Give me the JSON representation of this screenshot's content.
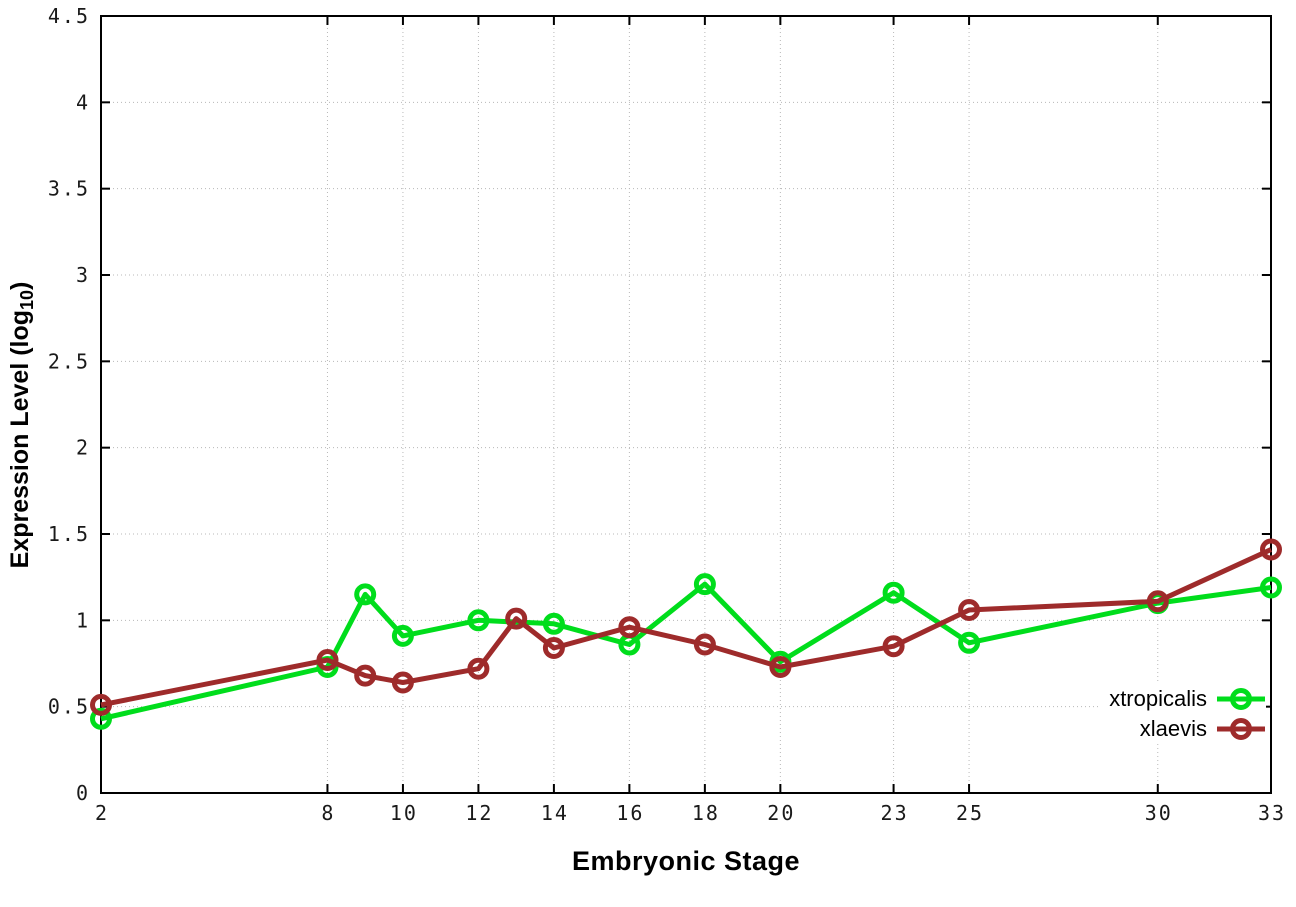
{
  "figure": {
    "background_color": "#ffffff",
    "axis_color": "#000000",
    "grid_color": "#b8b8b8",
    "tick_label_color": "#1a1a1a"
  },
  "chart_data": {
    "type": "line",
    "title": "",
    "xlabel": "Embryonic Stage",
    "ylabel": {
      "base": "Expression Level (log",
      "sub": "10",
      "suffix": ")"
    },
    "xlim": [
      2,
      33
    ],
    "ylim": [
      0,
      4.5
    ],
    "x_ticks": [
      2,
      8,
      10,
      12,
      14,
      16,
      18,
      20,
      23,
      25,
      30,
      33
    ],
    "x_tick_labels": [
      "2",
      "8",
      "10",
      "12",
      "14",
      "16",
      "18",
      "20",
      "23",
      "25",
      "30",
      "33"
    ],
    "y_ticks": [
      0,
      0.5,
      1,
      1.5,
      2,
      2.5,
      3,
      3.5,
      4,
      4.5
    ],
    "y_tick_labels": [
      "0",
      "0.5",
      "1",
      "1.5",
      "2",
      "2.5",
      "3",
      "3.5",
      "4",
      "4.5"
    ],
    "grid": true,
    "grid_style": "dotted",
    "legend_position": "inside-bottom-right",
    "marker": "open-circle",
    "series": [
      {
        "name": "xtropicalis",
        "color": "#00dd1c",
        "points": [
          [
            2,
            0.43
          ],
          [
            8,
            0.73
          ],
          [
            9,
            1.15
          ],
          [
            10,
            0.91
          ],
          [
            12,
            1.0
          ],
          [
            14,
            0.98
          ],
          [
            16,
            0.86
          ],
          [
            18,
            1.21
          ],
          [
            20,
            0.76
          ],
          [
            23,
            1.16
          ],
          [
            25,
            0.87
          ],
          [
            30,
            1.1
          ],
          [
            33,
            1.19
          ]
        ]
      },
      {
        "name": "xlaevis",
        "color": "#9e2b2b",
        "points": [
          [
            2,
            0.51
          ],
          [
            8,
            0.77
          ],
          [
            9,
            0.68
          ],
          [
            10,
            0.64
          ],
          [
            12,
            0.72
          ],
          [
            13,
            1.01
          ],
          [
            14,
            0.84
          ],
          [
            16,
            0.96
          ],
          [
            18,
            0.86
          ],
          [
            20,
            0.73
          ],
          [
            23,
            0.85
          ],
          [
            25,
            1.06
          ],
          [
            30,
            1.11
          ],
          [
            33,
            1.41
          ]
        ]
      }
    ]
  }
}
